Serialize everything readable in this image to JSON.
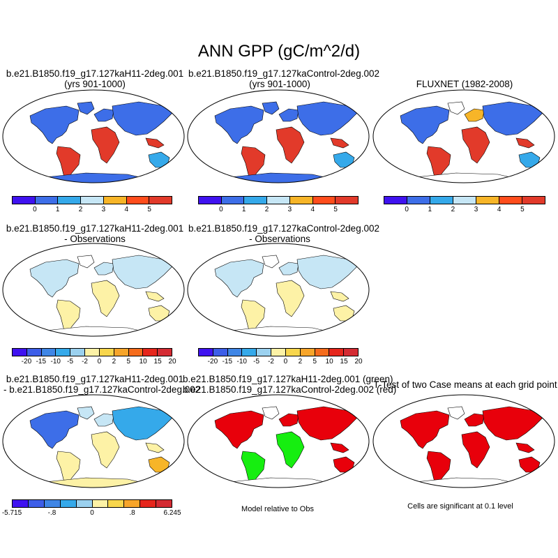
{
  "figure_title": "ANN GPP (gC/m^2/d)",
  "panels": [
    {
      "line1": "b.e21.B1850.f19_g17.127kaH11-2deg.001",
      "line2": "(yrs 901-1000)"
    },
    {
      "line1": "b.e21.B1850.f19_g17.127kaControl-2deg.002",
      "line2": "(yrs 901-1000)"
    },
    {
      "line1": "FLUXNET (1982-2008)",
      "line2": ""
    },
    {
      "line1": "b.e21.B1850.f19_g17.127kaH11-2deg.001",
      "line2": "- Observations"
    },
    {
      "line1": "b.e21.B1850.f19_g17.127kaControl-2deg.002",
      "line2": "- Observations"
    },
    {
      "line1": "b.e21.B1850.f19_g17.127kaH11-2deg.001",
      "line2": "- b.e21.B1850.f19_g17.127kaControl-2deg.002"
    },
    {
      "line1": "b.e21.B1850.f19_g17.127kaH11-2deg.001 (green)",
      "line2": "b.e21.B1850.f19_g17.127kaControl-2deg.002 (red)"
    },
    {
      "line1": "T-Test of two Case means at each grid point",
      "line2": ""
    }
  ],
  "colorbars": {
    "absolute": {
      "colors": [
        "#3f12f0",
        "#3d6ee8",
        "#35a9ea",
        "#c6e6f5",
        "#f7b528",
        "#ff4d1c",
        "#e23a2a"
      ],
      "labels": [
        "0",
        "1",
        "2",
        "3",
        "4",
        "5"
      ]
    },
    "difference": {
      "colors": [
        "#3f12f0",
        "#3d5ee8",
        "#3f86e6",
        "#35a9ea",
        "#9bd1ef",
        "#fdf2a6",
        "#f8d64c",
        "#f7a52a",
        "#f56c1c",
        "#e6261c",
        "#d42b33"
      ],
      "labels": [
        "-20",
        "-15",
        "-10",
        "-5",
        "-2",
        "0",
        "2",
        "5",
        "10",
        "15",
        "20"
      ]
    },
    "case_difference": {
      "colors": [
        "#3f12f0",
        "#3d5ee8",
        "#3f86e6",
        "#35a9ea",
        "#9bd1ef",
        "#fdf2a6",
        "#f8d64c",
        "#f7a52a",
        "#e6261c",
        "#d42b33"
      ],
      "labels": [
        "-5.715",
        "-.8",
        "0",
        ".8",
        "6.245"
      ]
    }
  },
  "notes": {
    "model_relative": "Model relative to Obs",
    "significance": "Cells are significant at 0.1 level"
  },
  "map_palette": {
    "land_low": "#3d6ee8",
    "land_mid": "#35a9ea",
    "land_high": "#e23a2a",
    "land_warm": "#f7b528",
    "pale_blue": "#c6e6f5",
    "pale_yellow": "#fdf2a6",
    "sig_red": "#e8000b",
    "sig_green": "#16ee10",
    "antarctica_blue": "#3d6ee8",
    "antarctica_yellow": "#fdf2a6"
  }
}
